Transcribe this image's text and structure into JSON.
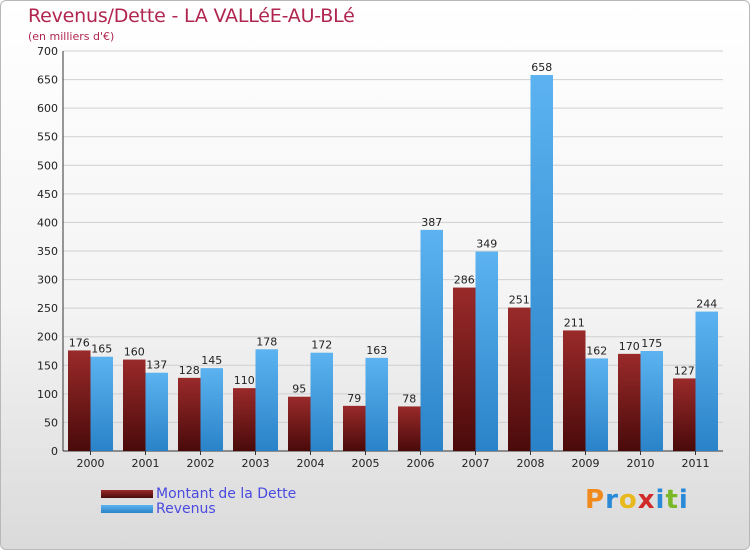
{
  "chart_data": {
    "type": "bar",
    "title": "Revenus/Dette - LA VALLéE-AU-BLé",
    "subtitle": "(en milliers d'€)",
    "categories": [
      "2000",
      "2001",
      "2002",
      "2003",
      "2004",
      "2005",
      "2006",
      "2007",
      "2008",
      "2009",
      "2010",
      "2011"
    ],
    "series": [
      {
        "name": "Montant de la Dette",
        "color": "#7a1a1a",
        "values": [
          176,
          160,
          128,
          110,
          95,
          79,
          78,
          286,
          251,
          211,
          170,
          127
        ]
      },
      {
        "name": "Revenus",
        "color": "#4aa3e6",
        "values": [
          165,
          137,
          145,
          178,
          172,
          163,
          387,
          349,
          658,
          162,
          175,
          244
        ]
      }
    ],
    "ylim": [
      0,
      700
    ],
    "yticks": [
      0,
      50,
      100,
      150,
      200,
      250,
      300,
      350,
      400,
      450,
      500,
      550,
      600,
      650,
      700
    ],
    "grid": true,
    "legend": "bottom-left"
  },
  "logo": {
    "text": "Proxiti"
  }
}
